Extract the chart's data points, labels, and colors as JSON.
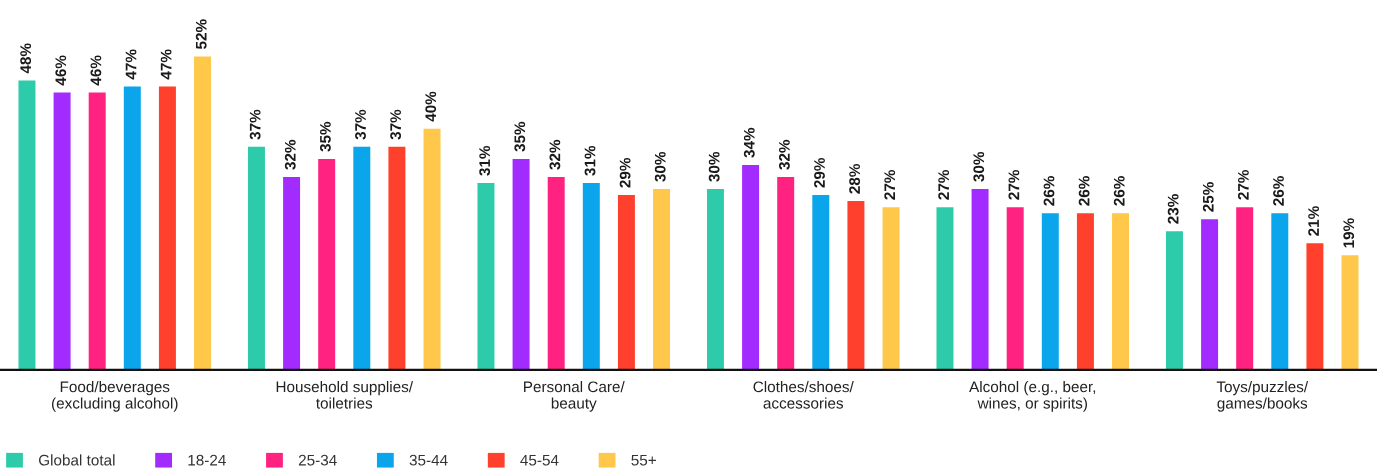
{
  "chart_data": {
    "type": "bar",
    "categories": [
      "Food/beverages\n(excluding alcohol)",
      "Household supplies/\ntoiletries",
      "Personal Care/\nbeauty",
      "Clothes/shoes/\naccessories",
      "Alcohol (e.g., beer,\nwines, or spirits)",
      "Toys/puzzles/\ngames/books"
    ],
    "series": [
      {
        "name": "Global total",
        "color": "#2ecbaa",
        "values": [
          48,
          37,
          31,
          30,
          27,
          23
        ],
        "value_labels": [
          "48%",
          "37%",
          "31%",
          "30%",
          "27%",
          "23%"
        ]
      },
      {
        "name": "18-24",
        "color": "#a22bff",
        "values": [
          46,
          32,
          35,
          34,
          30,
          25
        ],
        "value_labels": [
          "46%",
          "32%",
          "35%",
          "34%",
          "30%",
          "25%"
        ]
      },
      {
        "name": "25-34",
        "color": "#ff2280",
        "values": [
          46,
          35,
          32,
          32,
          27,
          27
        ],
        "value_labels": [
          "46%",
          "35%",
          "32%",
          "32%",
          "27%",
          "27%"
        ]
      },
      {
        "name": "35-44",
        "color": "#0aa5ea",
        "values": [
          47,
          37,
          31,
          29,
          26,
          26
        ],
        "value_labels": [
          "47%",
          "37%",
          "31%",
          "29%",
          "26%",
          "26%"
        ]
      },
      {
        "name": "45-54",
        "color": "#ff402c",
        "values": [
          47,
          37,
          29,
          28,
          26,
          21
        ],
        "value_labels": [
          "47%",
          "37%",
          "29%",
          "28%",
          "26%",
          "21%"
        ]
      },
      {
        "name": "55+",
        "color": "#ffc84a",
        "values": [
          52,
          40,
          30,
          27,
          26,
          19
        ],
        "value_labels": [
          "52%",
          "40%",
          "30%",
          "27%",
          "26%",
          "19%"
        ]
      }
    ],
    "tick_labels": "x",
    "legend": "bottom left"
  }
}
